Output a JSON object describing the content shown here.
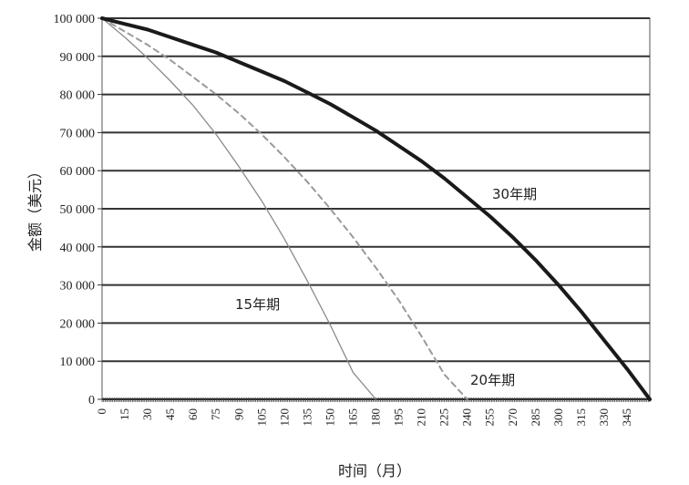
{
  "chart_data": {
    "type": "line",
    "title": "",
    "xlabel": "时间（月）",
    "ylabel": "金额（美元）",
    "xlim": [
      0,
      360
    ],
    "ylim": [
      0,
      100000
    ],
    "x_ticks": [
      0,
      15,
      30,
      45,
      60,
      75,
      90,
      105,
      120,
      135,
      150,
      165,
      180,
      195,
      210,
      225,
      240,
      255,
      270,
      285,
      300,
      315,
      330,
      345
    ],
    "y_tick_labels": [
      "0",
      "10 000",
      "20 000",
      "30 000",
      "40 000",
      "50 000",
      "60 000",
      "70 000",
      "80 000",
      "90 000",
      "100 000"
    ],
    "y_ticks": [
      0,
      10000,
      20000,
      30000,
      40000,
      50000,
      60000,
      70000,
      80000,
      90000,
      100000
    ],
    "grid": "horizontal",
    "legend": "none",
    "series": [
      {
        "name": "15年期",
        "style": "thin-solid",
        "color": "#8a8a8a",
        "x": [
          0,
          15,
          30,
          45,
          60,
          75,
          90,
          105,
          120,
          135,
          150,
          165,
          180
        ],
        "y": [
          100000,
          95000,
          89500,
          83500,
          77000,
          69500,
          61000,
          52000,
          42000,
          31000,
          19500,
          7000,
          0
        ]
      },
      {
        "name": "20年期",
        "style": "dashed",
        "color": "#999999",
        "x": [
          0,
          15,
          30,
          45,
          60,
          75,
          90,
          105,
          120,
          135,
          150,
          165,
          180,
          195,
          210,
          225,
          240
        ],
        "y": [
          100000,
          96500,
          93000,
          89000,
          84500,
          80000,
          75000,
          69500,
          63500,
          57000,
          50000,
          42500,
          34500,
          26000,
          16500,
          6500,
          0
        ]
      },
      {
        "name": "30年期",
        "style": "thick-solid",
        "color": "#1a1a1a",
        "x": [
          0,
          15,
          30,
          45,
          60,
          75,
          90,
          105,
          120,
          135,
          150,
          165,
          180,
          195,
          210,
          225,
          240,
          255,
          270,
          285,
          300,
          315,
          330,
          345,
          360
        ],
        "y": [
          100000,
          98500,
          97000,
          95000,
          93000,
          91000,
          88500,
          86000,
          83500,
          80500,
          77500,
          74000,
          70500,
          66500,
          62500,
          58000,
          53000,
          48000,
          42500,
          36500,
          30000,
          23000,
          15500,
          8000,
          0
        ]
      }
    ]
  }
}
